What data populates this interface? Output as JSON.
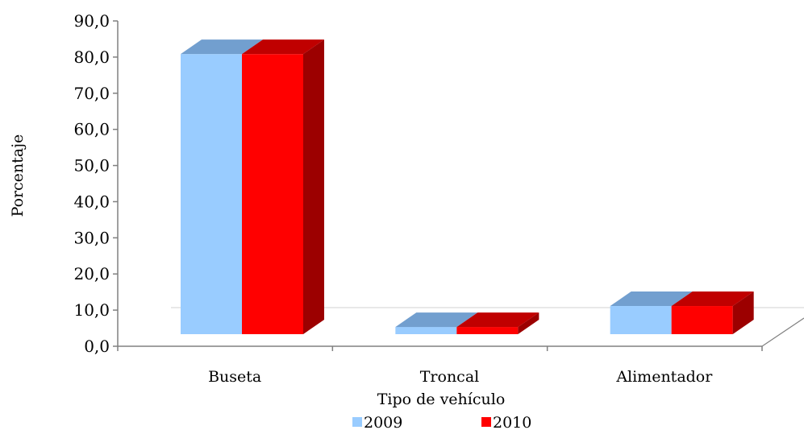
{
  "chart_data": {
    "type": "bar",
    "title": "",
    "xlabel": "Tipo de vehículo",
    "ylabel": "Porcentaje",
    "ylim": [
      0,
      90
    ],
    "yticks": [
      "0,0",
      "10,0",
      "20,0",
      "30,0",
      "40,0",
      "50,0",
      "60,0",
      "70,0",
      "80,0",
      "90,0"
    ],
    "categories": [
      "Buseta",
      "Troncal",
      "Alimentador"
    ],
    "series": [
      {
        "name": "2009",
        "values": [
          81.5,
          6.0,
          11.8
        ],
        "color": "#99ccff"
      },
      {
        "name": "2010",
        "values": [
          81.5,
          6.0,
          11.8
        ],
        "color": "#ff0000"
      }
    ],
    "legend_position": "bottom",
    "grid": false
  }
}
